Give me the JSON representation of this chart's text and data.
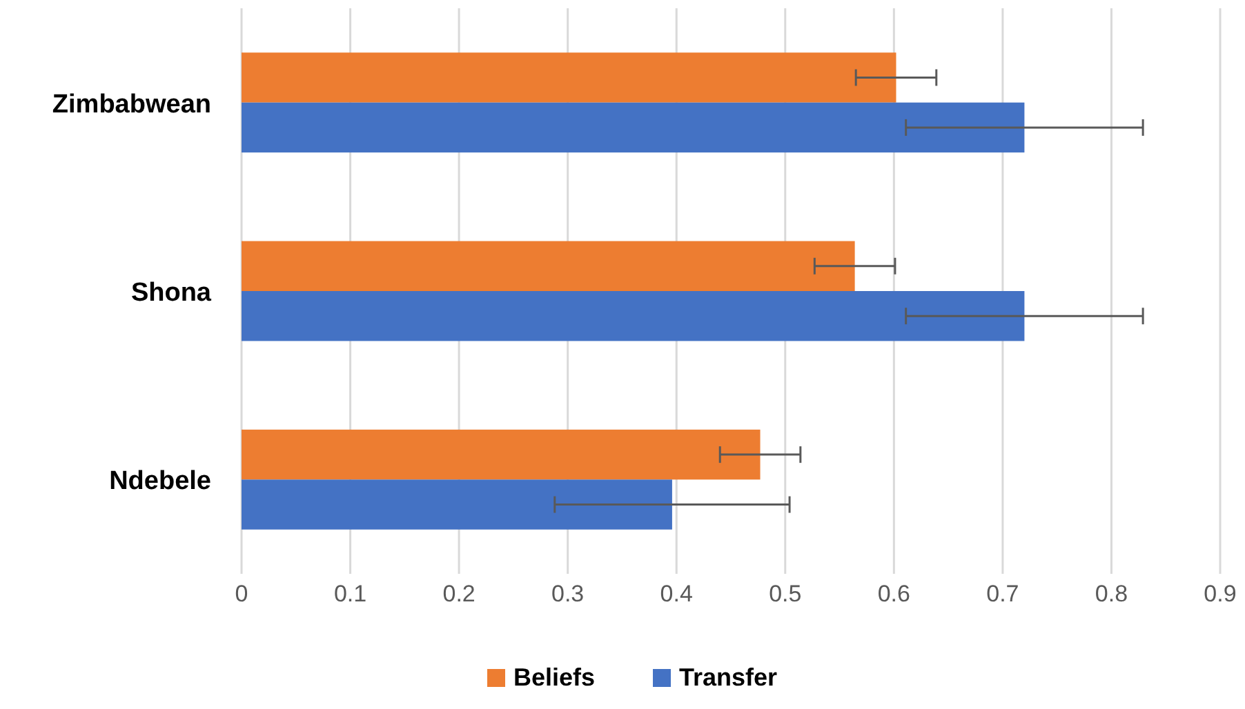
{
  "chart_data": {
    "type": "bar",
    "orientation": "horizontal",
    "categories": [
      "Zimbabwean",
      "Shona",
      "Ndebele"
    ],
    "series": [
      {
        "name": "Beliefs",
        "color": "#ed7d31",
        "values": [
          0.602,
          0.564,
          0.477
        ],
        "errors": [
          0.037,
          0.037,
          0.037
        ]
      },
      {
        "name": "Transfer",
        "color": "#4472c4",
        "values": [
          0.72,
          0.72,
          0.396
        ],
        "errors": [
          0.109,
          0.109,
          0.108
        ]
      }
    ],
    "xlim": [
      0,
      0.9
    ],
    "xticks": [
      0,
      0.1,
      0.2,
      0.3,
      0.4,
      0.5,
      0.6,
      0.7,
      0.8,
      0.9
    ],
    "grid": "x",
    "legend": "bottom"
  }
}
